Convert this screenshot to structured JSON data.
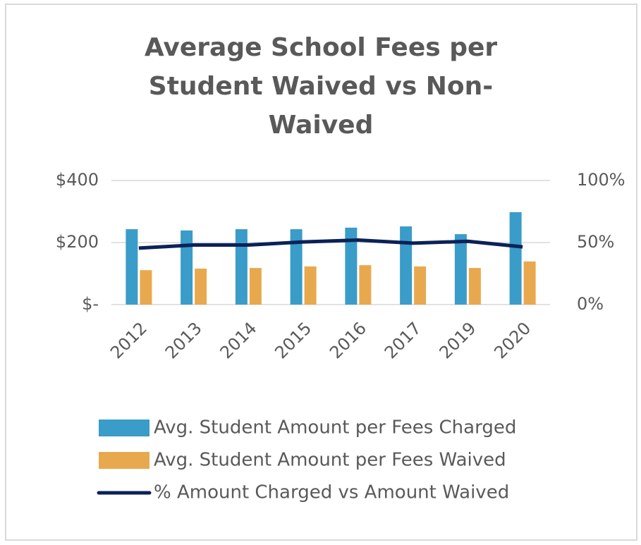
{
  "chart_data": {
    "type": "bar-line",
    "title": "Average School Fees per Student Waived vs Non-Waived",
    "categories": [
      "2012",
      "2013",
      "2014",
      "2015",
      "2016",
      "2017",
      "2019",
      "2020"
    ],
    "series": [
      {
        "name": "Avg. Student Amount per Fees Charged",
        "type": "bar",
        "color": "#3a9cc8",
        "values": [
          243,
          239,
          243,
          243,
          248,
          252,
          227,
          298
        ]
      },
      {
        "name": "Avg. Student Amount per Fees Waived",
        "type": "bar",
        "color": "#e8a94e",
        "values": [
          111,
          116,
          118,
          123,
          127,
          123,
          118,
          139
        ]
      },
      {
        "name": "% Amount Charged vs Amount Waived",
        "type": "line",
        "axis": "y2",
        "color": "#0b2158",
        "values": [
          45.5,
          48,
          48,
          50.5,
          52,
          49.5,
          51,
          46.5
        ]
      }
    ],
    "ylim": [
      0,
      400
    ],
    "yticks": [
      {
        "value": 0,
        "label": "$-"
      },
      {
        "value": 200,
        "label": "$200"
      },
      {
        "value": 400,
        "label": "$400"
      }
    ],
    "y2lim": [
      0,
      100
    ],
    "y2ticks": [
      {
        "value": 0,
        "label": "0%"
      },
      {
        "value": 50,
        "label": "50%"
      },
      {
        "value": 100,
        "label": "100%"
      }
    ],
    "grid": true,
    "legend": "bottom"
  }
}
